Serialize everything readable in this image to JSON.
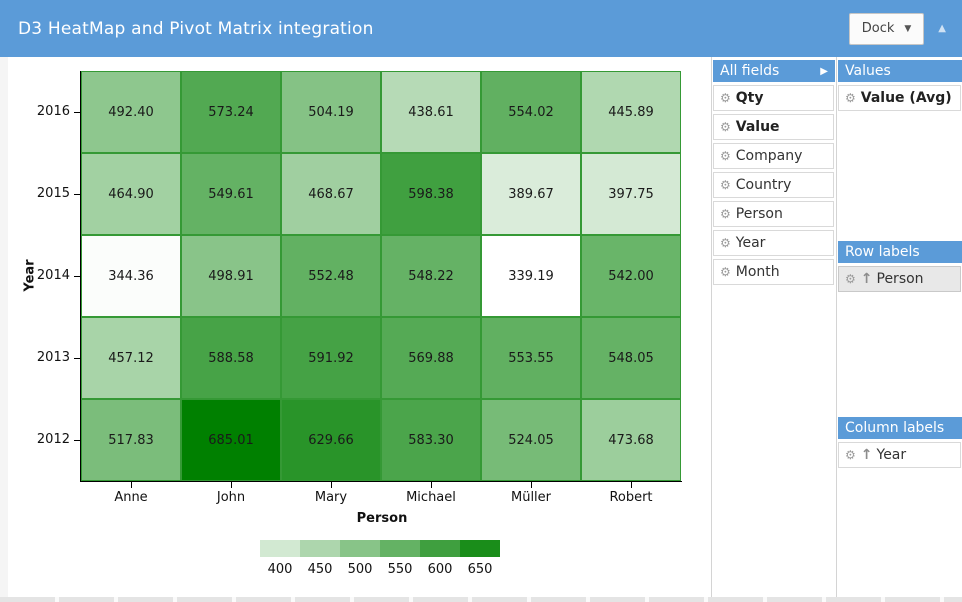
{
  "header": {
    "title": "D3 HeatMap and Pivot Matrix integration",
    "dock_button": {
      "label": "Dock"
    },
    "accent_blue": "#5b9bd8"
  },
  "icons": {
    "gear": "⚙",
    "sort_asc": "↑",
    "caret_down": "▼",
    "expand_right": "▶",
    "collapse_up": "▲"
  },
  "pivot": {
    "all_fields": {
      "title": "All fields",
      "items": [
        {
          "label": "Qty",
          "bold": true
        },
        {
          "label": "Value",
          "bold": true
        },
        {
          "label": "Company"
        },
        {
          "label": "Country"
        },
        {
          "label": "Person"
        },
        {
          "label": "Year"
        },
        {
          "label": "Month"
        }
      ]
    },
    "values": {
      "title": "Values",
      "items": [
        {
          "label": "Value (Avg)",
          "bold": true
        }
      ]
    },
    "row_labels": {
      "title": "Row labels",
      "items": [
        {
          "label": "Person",
          "sorted": true,
          "selected": true
        }
      ]
    },
    "column_labels": {
      "title": "Column labels",
      "items": [
        {
          "label": "Year",
          "sorted": true
        }
      ]
    }
  },
  "chart_data": {
    "type": "heatmap",
    "xlabel": "Person",
    "ylabel": "Year",
    "columns": [
      "Anne",
      "John",
      "Mary",
      "Michael",
      "Müller",
      "Robert"
    ],
    "rows": [
      "2016",
      "2015",
      "2014",
      "2013",
      "2012"
    ],
    "values": [
      [
        492.4,
        573.24,
        504.19,
        438.61,
        554.02,
        445.89
      ],
      [
        464.9,
        549.61,
        468.67,
        598.38,
        389.67,
        397.75
      ],
      [
        344.36,
        498.91,
        552.48,
        548.22,
        339.19,
        542.0
      ],
      [
        457.12,
        588.58,
        591.92,
        569.88,
        553.55,
        548.05
      ],
      [
        517.83,
        685.01,
        629.66,
        583.3,
        524.05,
        473.68
      ]
    ],
    "legend_values": [
      400,
      450,
      500,
      550,
      600,
      650
    ],
    "scale": {
      "min_color": "#ffffff",
      "max_color": "#008000",
      "domain": [
        339.19,
        685.01
      ]
    },
    "cell_border_color": "#359935",
    "grid": false,
    "legend_position": "bottom"
  }
}
